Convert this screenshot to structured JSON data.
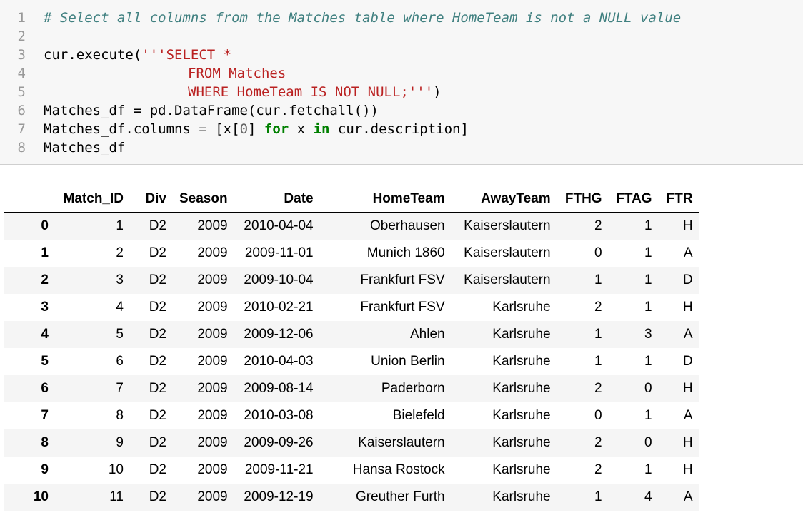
{
  "code_cell": {
    "line_numbers": [
      "1",
      "2",
      "3",
      "4",
      "5",
      "6",
      "7",
      "8"
    ],
    "comment": "# Select all columns from the Matches table where HomeTeam is not a NULL value",
    "line3_prefix": "cur.execute(",
    "line3_string": "'''SELECT *",
    "line4_string": "FROM Matches",
    "line5_string": "WHERE HomeTeam IS NOT NULL;'''",
    "line5_close": ")",
    "line6": "Matches_df = pd.DataFrame(cur.fetchall())",
    "line7_a": "Matches_df.columns ",
    "line7_eq": "=",
    "line7_b": " [x[",
    "line7_num": "0",
    "line7_c": "] ",
    "line7_for": "for",
    "line7_d": " x ",
    "line7_in": "in",
    "line7_e": " cur.description]",
    "line8": "Matches_df"
  },
  "dataframe": {
    "columns": [
      "Match_ID",
      "Div",
      "Season",
      "Date",
      "HomeTeam",
      "AwayTeam",
      "FTHG",
      "FTAG",
      "FTR"
    ],
    "rows": [
      {
        "index": "0",
        "cells": [
          "1",
          "D2",
          "2009",
          "2010-04-04",
          "Oberhausen",
          "Kaiserslautern",
          "2",
          "1",
          "H"
        ]
      },
      {
        "index": "1",
        "cells": [
          "2",
          "D2",
          "2009",
          "2009-11-01",
          "Munich 1860",
          "Kaiserslautern",
          "0",
          "1",
          "A"
        ]
      },
      {
        "index": "2",
        "cells": [
          "3",
          "D2",
          "2009",
          "2009-10-04",
          "Frankfurt FSV",
          "Kaiserslautern",
          "1",
          "1",
          "D"
        ]
      },
      {
        "index": "3",
        "cells": [
          "4",
          "D2",
          "2009",
          "2010-02-21",
          "Frankfurt FSV",
          "Karlsruhe",
          "2",
          "1",
          "H"
        ]
      },
      {
        "index": "4",
        "cells": [
          "5",
          "D2",
          "2009",
          "2009-12-06",
          "Ahlen",
          "Karlsruhe",
          "1",
          "3",
          "A"
        ]
      },
      {
        "index": "5",
        "cells": [
          "6",
          "D2",
          "2009",
          "2010-04-03",
          "Union Berlin",
          "Karlsruhe",
          "1",
          "1",
          "D"
        ]
      },
      {
        "index": "6",
        "cells": [
          "7",
          "D2",
          "2009",
          "2009-08-14",
          "Paderborn",
          "Karlsruhe",
          "2",
          "0",
          "H"
        ]
      },
      {
        "index": "7",
        "cells": [
          "8",
          "D2",
          "2009",
          "2010-03-08",
          "Bielefeld",
          "Karlsruhe",
          "0",
          "1",
          "A"
        ]
      },
      {
        "index": "8",
        "cells": [
          "9",
          "D2",
          "2009",
          "2009-09-26",
          "Kaiserslautern",
          "Karlsruhe",
          "2",
          "0",
          "H"
        ]
      },
      {
        "index": "9",
        "cells": [
          "10",
          "D2",
          "2009",
          "2009-11-21",
          "Hansa Rostock",
          "Karlsruhe",
          "2",
          "1",
          "H"
        ]
      },
      {
        "index": "10",
        "cells": [
          "11",
          "D2",
          "2009",
          "2009-12-19",
          "Greuther Furth",
          "Karlsruhe",
          "1",
          "4",
          "A"
        ]
      }
    ]
  },
  "colors": {
    "cell_background": "#f7f7f7",
    "comment": "#408080",
    "string": "#ba2121",
    "keyword": "#008000",
    "line_number": "#999999",
    "row_stripe": "#f5f5f5"
  }
}
